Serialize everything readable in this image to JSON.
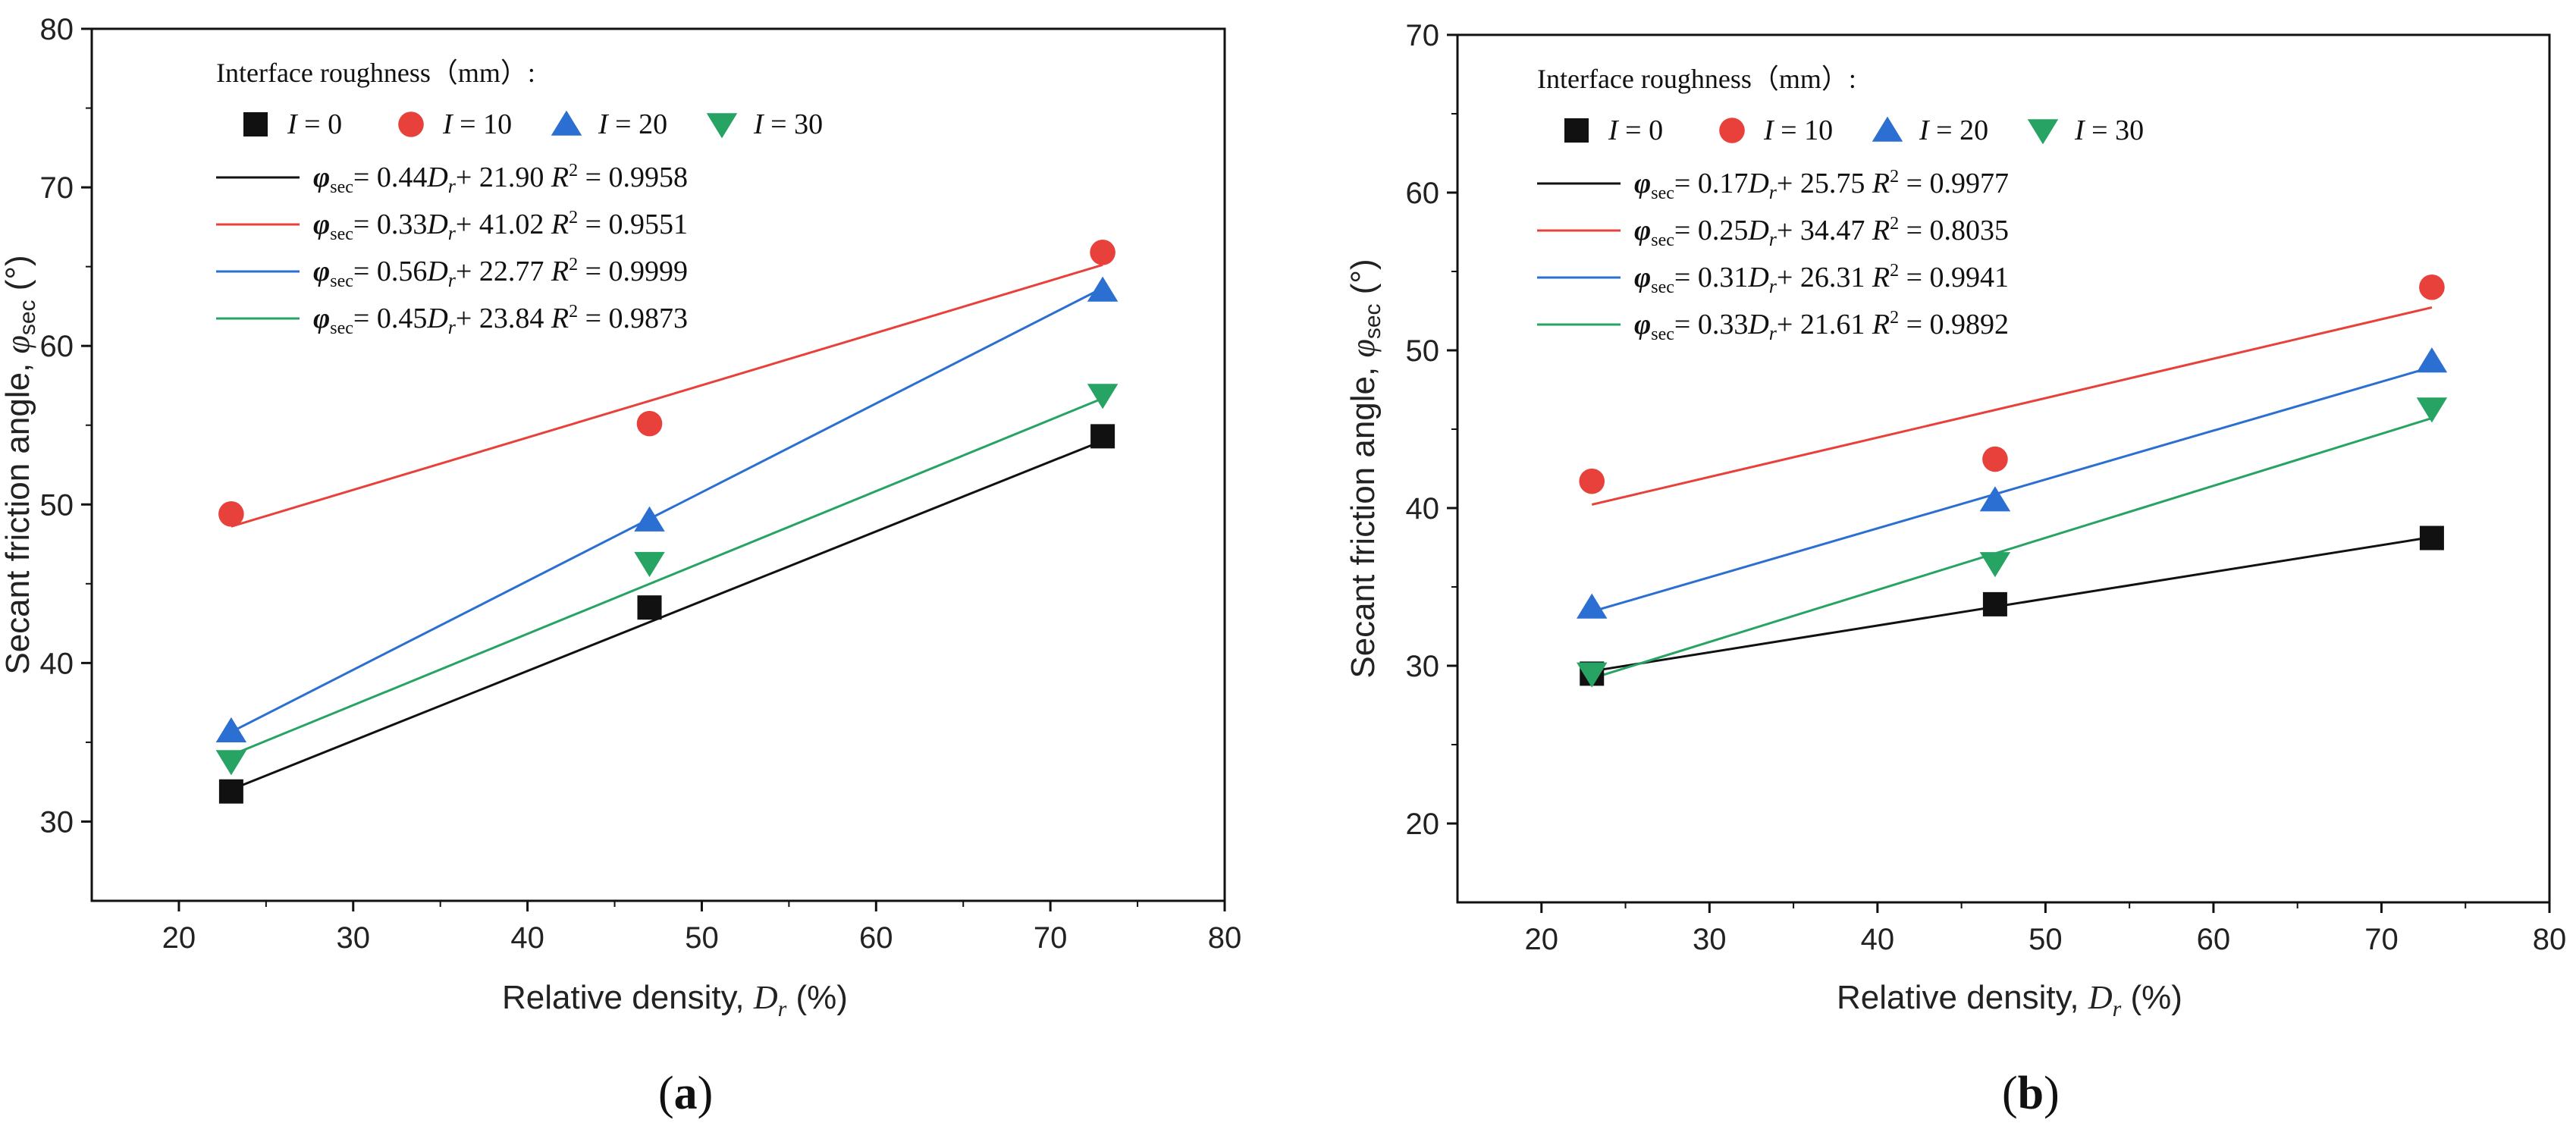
{
  "figure": {
    "panels": [
      "(a)",
      "(b)"
    ]
  },
  "legend": {
    "title": "Interface roughness（mm）:",
    "series_prefix": "I",
    "series_values": [
      "0",
      "10",
      "20",
      "30"
    ],
    "fit_symbol": "φ",
    "fit_symbol_sub": "sec",
    "fit_var": "D",
    "fit_var_sub": "r",
    "r2_label": "R",
    "r2_sup": "2"
  },
  "chart_data": [
    {
      "type": "scatter",
      "panel_label": "(a)",
      "xlabel": "Relative density, D_r (%)",
      "ylabel": "Secant friction angle, φsec (°)",
      "xlim": [
        15,
        80
      ],
      "ylim": [
        25,
        80
      ],
      "xticks": [
        20,
        30,
        40,
        50,
        60,
        70,
        80
      ],
      "yticks": [
        30,
        40,
        50,
        60,
        70,
        80
      ],
      "series": [
        {
          "name": "I = 0",
          "marker": "square",
          "color": "#111111",
          "x": [
            23,
            47,
            73
          ],
          "y": [
            31.9,
            43.5,
            54.3
          ],
          "fit": {
            "slope": 0.44,
            "intercept": 21.9,
            "r2": "0.9958",
            "eq": "0.44D_r+ 21.90"
          }
        },
        {
          "name": "I = 10",
          "marker": "circle",
          "color": "#e8413c",
          "x": [
            23,
            47,
            73
          ],
          "y": [
            49.4,
            55.1,
            65.9
          ],
          "fit": {
            "slope": 0.33,
            "intercept": 41.02,
            "r2": "0.9551",
            "eq": "0.33D_r+ 41.02"
          }
        },
        {
          "name": "I = 20",
          "marker": "triangle-up",
          "color": "#2a6fd1",
          "x": [
            23,
            47,
            73
          ],
          "y": [
            35.7,
            49.0,
            63.5
          ],
          "fit": {
            "slope": 0.56,
            "intercept": 22.77,
            "r2": "0.9999",
            "eq": "0.56D_r+ 22.77"
          }
        },
        {
          "name": "I = 30",
          "marker": "triangle-down",
          "color": "#27a364",
          "x": [
            23,
            47,
            73
          ],
          "y": [
            33.8,
            46.3,
            56.9
          ],
          "fit": {
            "slope": 0.45,
            "intercept": 23.84,
            "r2": "0.9873",
            "eq": "0.45D_r+ 23.84"
          }
        }
      ]
    },
    {
      "type": "scatter",
      "panel_label": "(b)",
      "xlabel": "Relative density, D_r (%)",
      "ylabel": "Secant friction angle, φsec (°)",
      "xlim": [
        15,
        80
      ],
      "ylim": [
        15,
        70
      ],
      "xticks": [
        20,
        30,
        40,
        50,
        60,
        70,
        80
      ],
      "yticks": [
        20,
        30,
        40,
        50,
        60,
        70
      ],
      "series": [
        {
          "name": "I = 0",
          "marker": "square",
          "color": "#111111",
          "x": [
            23,
            47,
            73
          ],
          "y": [
            29.5,
            33.9,
            38.1
          ],
          "fit": {
            "slope": 0.17,
            "intercept": 25.75,
            "r2": "0.9977",
            "eq": "0.17D_r+ 25.75"
          }
        },
        {
          "name": "I = 10",
          "marker": "circle",
          "color": "#e8413c",
          "x": [
            23,
            47,
            73
          ],
          "y": [
            41.7,
            43.1,
            54.0
          ],
          "fit": {
            "slope": 0.25,
            "intercept": 34.47,
            "r2": "0.8035",
            "eq": "0.25D_r+ 34.47"
          }
        },
        {
          "name": "I = 20",
          "marker": "triangle-up",
          "color": "#2a6fd1",
          "x": [
            23,
            47,
            73
          ],
          "y": [
            33.7,
            40.5,
            49.3
          ],
          "fit": {
            "slope": 0.31,
            "intercept": 26.31,
            "r2": "0.9941",
            "eq": "0.31D_r+ 26.31"
          }
        },
        {
          "name": "I = 30",
          "marker": "triangle-down",
          "color": "#27a364",
          "x": [
            23,
            47,
            73
          ],
          "y": [
            29.5,
            36.5,
            46.3
          ],
          "fit": {
            "slope": 0.33,
            "intercept": 21.61,
            "r2": "0.9892",
            "eq": "0.33D_r+ 21.61"
          }
        }
      ]
    }
  ]
}
